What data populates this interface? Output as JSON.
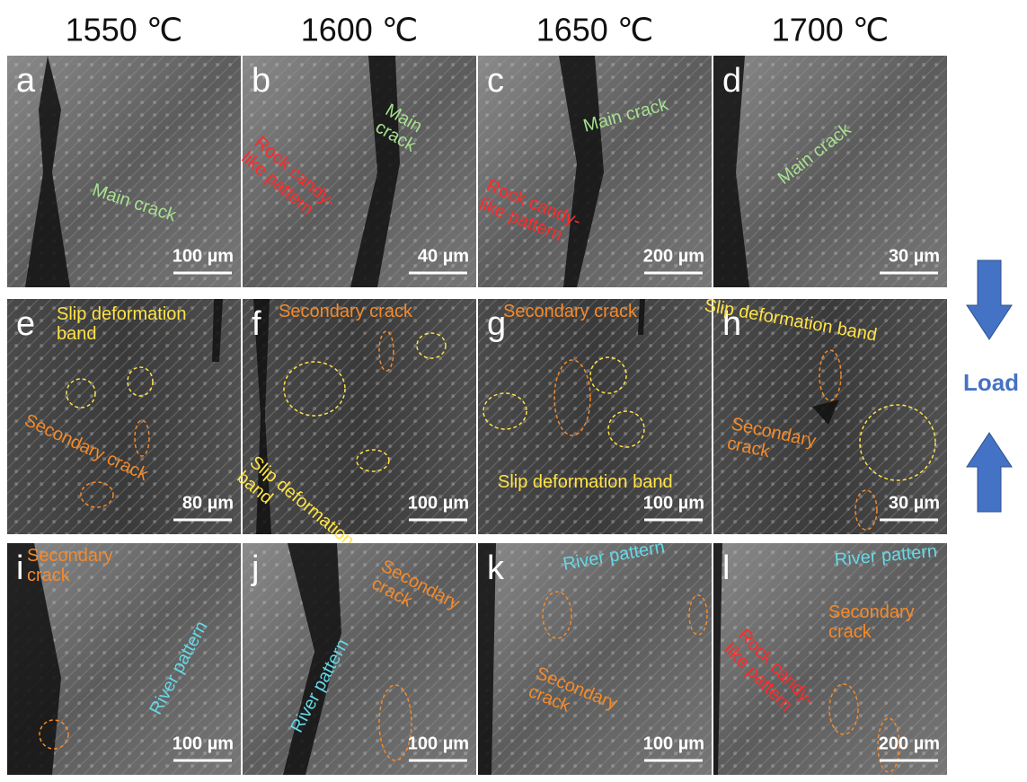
{
  "column_headers": [
    "1550 ℃",
    "1600 ℃",
    "1650 ℃",
    "1700 ℃"
  ],
  "side_label": "Load",
  "panels": [
    {
      "label": "a",
      "scale_bar": "100 µm",
      "annotations": [
        {
          "lines": [
            "Main crack"
          ]
        }
      ]
    },
    {
      "label": "b",
      "scale_bar": "40 µm",
      "annotations": [
        {
          "lines": [
            "Main",
            "crack"
          ]
        },
        {
          "lines": [
            "Rock candy-",
            "like pattern"
          ]
        }
      ]
    },
    {
      "label": "c",
      "scale_bar": "200 µm",
      "annotations": [
        {
          "lines": [
            "Main crack"
          ]
        },
        {
          "lines": [
            "Rock candy-",
            "like pattern"
          ]
        }
      ]
    },
    {
      "label": "d",
      "scale_bar": "30 µm",
      "annotations": [
        {
          "lines": [
            "Main crack"
          ]
        }
      ]
    },
    {
      "label": "e",
      "scale_bar": "80 µm",
      "annotations": [
        {
          "lines": [
            "Slip deformation",
            "band"
          ]
        },
        {
          "lines": [
            "Secondary crack"
          ]
        }
      ]
    },
    {
      "label": "f",
      "scale_bar": "100 µm",
      "annotations": [
        {
          "lines": [
            "Secondary crack"
          ]
        },
        {
          "lines": [
            "Slip deformation",
            "band"
          ]
        }
      ]
    },
    {
      "label": "g",
      "scale_bar": "100 µm",
      "annotations": [
        {
          "lines": [
            "Secondary crack"
          ]
        },
        {
          "lines": [
            "Slip deformation band"
          ]
        }
      ]
    },
    {
      "label": "h",
      "scale_bar": "30 µm",
      "annotations": [
        {
          "lines": [
            "Slip deformation band"
          ]
        },
        {
          "lines": [
            "Secondary",
            "crack"
          ]
        }
      ]
    },
    {
      "label": "i",
      "scale_bar": "100 µm",
      "annotations": [
        {
          "lines": [
            "Secondary",
            "crack"
          ]
        },
        {
          "lines": [
            "River pattern"
          ]
        }
      ]
    },
    {
      "label": "j",
      "scale_bar": "100 µm",
      "annotations": [
        {
          "lines": [
            "River pattern"
          ]
        },
        {
          "lines": [
            "Secondary",
            "crack"
          ]
        }
      ]
    },
    {
      "label": "k",
      "scale_bar": "100 µm",
      "annotations": [
        {
          "lines": [
            "River pattern"
          ]
        },
        {
          "lines": [
            "Secondary",
            "crack"
          ]
        }
      ]
    },
    {
      "label": "l",
      "scale_bar": "200 µm",
      "annotations": [
        {
          "lines": [
            "River pattern"
          ]
        },
        {
          "lines": [
            "Rock candy-",
            "like pattern"
          ]
        },
        {
          "lines": [
            "Secondary",
            "crack"
          ]
        }
      ]
    }
  ]
}
